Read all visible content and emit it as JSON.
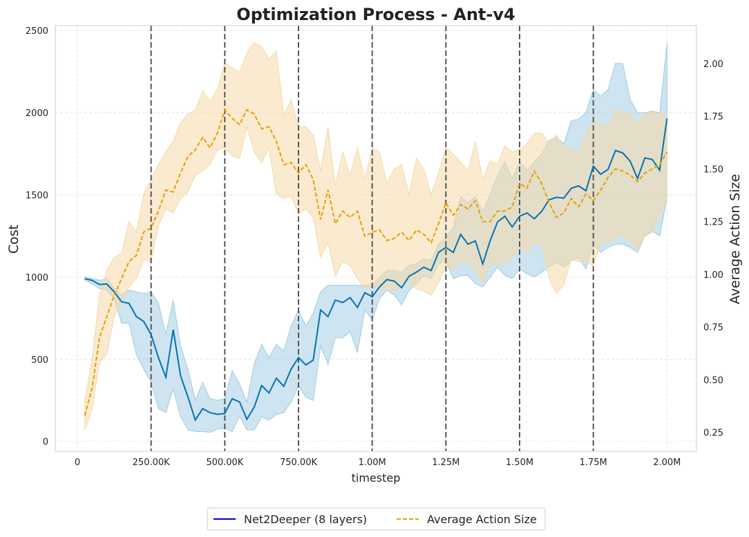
{
  "chart_data": {
    "type": "line",
    "title": "Optimization Process - Ant-v4",
    "xlabel": "timestep",
    "ylabel_left": "Cost",
    "ylabel_right": "Average Action Size",
    "xlim": [
      -75000,
      2100000
    ],
    "ylim_left": [
      -60,
      2530
    ],
    "ylim_right": [
      0.16,
      2.18
    ],
    "x_ticks": [
      0,
      250000,
      500000,
      750000,
      1000000,
      1250000,
      1500000,
      1750000,
      2000000
    ],
    "x_tick_labels": [
      "0",
      "250.00K",
      "500.00K",
      "750.00K",
      "1.00M",
      "1.25M",
      "1.50M",
      "1.75M",
      "2.00M"
    ],
    "y_left_ticks": [
      0,
      500,
      1000,
      1500,
      2000,
      2500
    ],
    "y_right_ticks": [
      0.25,
      0.5,
      0.75,
      1.0,
      1.25,
      1.5,
      1.75,
      2.0
    ],
    "y_right_tick_labels": [
      "0.25",
      "0.50",
      "0.75",
      "1.00",
      "1.25",
      "1.50",
      "1.75",
      "2.00"
    ],
    "vlines": [
      250000,
      500000,
      750000,
      1000000,
      1250000,
      1500000,
      1750000
    ],
    "grid": true,
    "legend_placement": "bottom-center",
    "colors": {
      "cost": "#0072b2",
      "cost_band": "#9ecae1",
      "action": "#e69f00",
      "action_band": "#f5d9a8",
      "legend_cost_line": "#0000cc",
      "vline": "#555555",
      "grid": "#dddddd"
    },
    "series": [
      {
        "name": "Net2Deeper (8 layers)",
        "axis": "left",
        "style": "solid",
        "x": [
          25000,
          50000,
          75000,
          100000,
          125000,
          150000,
          175000,
          200000,
          225000,
          250000,
          275000,
          300000,
          325000,
          350000,
          375000,
          400000,
          425000,
          450000,
          475000,
          500000,
          525000,
          550000,
          575000,
          600000,
          625000,
          650000,
          675000,
          700000,
          725000,
          750000,
          775000,
          800000,
          825000,
          850000,
          875000,
          900000,
          925000,
          950000,
          975000,
          1000000,
          1025000,
          1050000,
          1075000,
          1100000,
          1125000,
          1150000,
          1175000,
          1200000,
          1225000,
          1250000,
          1275000,
          1300000,
          1325000,
          1350000,
          1375000,
          1400000,
          1425000,
          1450000,
          1475000,
          1500000,
          1525000,
          1550000,
          1575000,
          1600000,
          1625000,
          1650000,
          1675000,
          1700000,
          1725000,
          1750000,
          1775000,
          1800000,
          1825000,
          1850000,
          1875000,
          1900000,
          1925000,
          1950000,
          1975000,
          2000000
        ],
        "values": [
          990,
          980,
          955,
          958,
          910,
          850,
          840,
          760,
          730,
          650,
          510,
          390,
          680,
          400,
          270,
          130,
          200,
          175,
          165,
          170,
          260,
          240,
          135,
          210,
          340,
          295,
          385,
          335,
          440,
          510,
          465,
          495,
          800,
          760,
          860,
          845,
          875,
          815,
          905,
          880,
          940,
          985,
          975,
          935,
          1005,
          1030,
          1060,
          1040,
          1150,
          1180,
          1150,
          1260,
          1200,
          1220,
          1080,
          1220,
          1335,
          1370,
          1305,
          1370,
          1390,
          1355,
          1400,
          1470,
          1485,
          1480,
          1540,
          1555,
          1525,
          1675,
          1625,
          1655,
          1770,
          1755,
          1705,
          1600,
          1725,
          1715,
          1650,
          1965
        ],
        "upper": [
          1000,
          990,
          980,
          990,
          930,
          890,
          920,
          910,
          900,
          910,
          840,
          650,
          860,
          580,
          440,
          250,
          360,
          260,
          250,
          260,
          430,
          350,
          240,
          470,
          590,
          510,
          590,
          550,
          700,
          800,
          700,
          780,
          910,
          950,
          950,
          950,
          950,
          950,
          950,
          950,
          1000,
          1040,
          1040,
          1030,
          1070,
          1080,
          1110,
          1100,
          1200,
          1240,
          1300,
          1490,
          1450,
          1490,
          1400,
          1500,
          1620,
          1700,
          1600,
          1700,
          1650,
          1700,
          1750,
          1830,
          1850,
          1810,
          1950,
          1960,
          2000,
          2140,
          2100,
          2140,
          2300,
          2300,
          2080,
          2000,
          2000,
          2010,
          2000,
          2420
        ],
        "lower": [
          980,
          960,
          930,
          920,
          870,
          720,
          720,
          530,
          440,
          360,
          200,
          175,
          320,
          150,
          70,
          60,
          60,
          55,
          75,
          80,
          60,
          155,
          70,
          70,
          150,
          130,
          165,
          175,
          240,
          340,
          270,
          250,
          580,
          470,
          630,
          630,
          670,
          540,
          800,
          740,
          870,
          920,
          890,
          830,
          920,
          960,
          1010,
          990,
          1080,
          1100,
          990,
          1010,
          1010,
          960,
          940,
          1000,
          1060,
          1010,
          990,
          1050,
          1020,
          1000,
          1030,
          1060,
          1090,
          1060,
          1100,
          1120,
          1050,
          1200,
          1150,
          1180,
          1200,
          1200,
          1180,
          1150,
          1250,
          1280,
          1250,
          1480
        ]
      },
      {
        "name": "Average Action Size",
        "axis": "right",
        "style": "dashed",
        "x": [
          25000,
          50000,
          75000,
          100000,
          125000,
          150000,
          175000,
          200000,
          225000,
          250000,
          275000,
          300000,
          325000,
          350000,
          375000,
          400000,
          425000,
          450000,
          475000,
          500000,
          525000,
          550000,
          575000,
          600000,
          625000,
          650000,
          675000,
          700000,
          725000,
          750000,
          775000,
          800000,
          825000,
          850000,
          875000,
          900000,
          925000,
          950000,
          975000,
          1000000,
          1025000,
          1050000,
          1075000,
          1100000,
          1125000,
          1150000,
          1175000,
          1200000,
          1225000,
          1250000,
          1275000,
          1300000,
          1325000,
          1350000,
          1375000,
          1400000,
          1425000,
          1450000,
          1475000,
          1500000,
          1525000,
          1550000,
          1575000,
          1600000,
          1625000,
          1650000,
          1675000,
          1700000,
          1725000,
          1750000,
          1775000,
          1800000,
          1825000,
          1850000,
          1875000,
          1900000,
          1925000,
          1950000,
          1975000,
          2000000
        ],
        "values": [
          0.33,
          0.46,
          0.7,
          0.8,
          0.9,
          0.98,
          1.06,
          1.09,
          1.2,
          1.22,
          1.3,
          1.4,
          1.39,
          1.48,
          1.56,
          1.59,
          1.65,
          1.6,
          1.67,
          1.78,
          1.74,
          1.71,
          1.78,
          1.76,
          1.69,
          1.7,
          1.63,
          1.52,
          1.53,
          1.48,
          1.52,
          1.45,
          1.26,
          1.4,
          1.24,
          1.3,
          1.27,
          1.3,
          1.18,
          1.2,
          1.21,
          1.16,
          1.17,
          1.2,
          1.16,
          1.21,
          1.19,
          1.15,
          1.24,
          1.34,
          1.28,
          1.33,
          1.31,
          1.35,
          1.25,
          1.25,
          1.3,
          1.3,
          1.32,
          1.43,
          1.41,
          1.49,
          1.43,
          1.34,
          1.27,
          1.29,
          1.36,
          1.32,
          1.38,
          1.35,
          1.4,
          1.46,
          1.5,
          1.49,
          1.47,
          1.44,
          1.48,
          1.5,
          1.52,
          1.58
        ],
        "upper": [
          0.4,
          0.6,
          0.9,
          1.02,
          1.08,
          1.1,
          1.25,
          1.2,
          1.38,
          1.45,
          1.52,
          1.58,
          1.63,
          1.72,
          1.76,
          1.78,
          1.87,
          1.82,
          1.88,
          2.0,
          1.98,
          1.96,
          2.05,
          2.1,
          2.08,
          2.02,
          2.06,
          1.75,
          1.83,
          1.7,
          1.7,
          1.66,
          1.49,
          1.7,
          1.42,
          1.58,
          1.47,
          1.6,
          1.45,
          1.6,
          1.58,
          1.43,
          1.5,
          1.52,
          1.38,
          1.55,
          1.5,
          1.38,
          1.48,
          1.6,
          1.57,
          1.53,
          1.49,
          1.63,
          1.45,
          1.54,
          1.52,
          1.61,
          1.58,
          1.59,
          1.62,
          1.67,
          1.67,
          1.62,
          1.66,
          1.6,
          1.6,
          1.58,
          1.66,
          1.73,
          1.71,
          1.7,
          1.78,
          1.77,
          1.76,
          1.71,
          1.76,
          1.77,
          1.76,
          1.76
        ],
        "lower": [
          0.26,
          0.36,
          0.58,
          0.62,
          0.8,
          0.87,
          0.94,
          0.98,
          1.07,
          1.06,
          1.23,
          1.31,
          1.29,
          1.36,
          1.39,
          1.47,
          1.49,
          1.52,
          1.59,
          1.6,
          1.56,
          1.55,
          1.7,
          1.58,
          1.53,
          1.6,
          1.38,
          1.36,
          1.37,
          1.29,
          1.31,
          1.27,
          1.08,
          1.15,
          0.99,
          1.06,
          1.04,
          0.98,
          0.93,
          0.95,
          0.93,
          0.93,
          0.92,
          0.95,
          0.96,
          0.93,
          0.92,
          0.9,
          0.96,
          1.04,
          1.02,
          1.06,
          1.06,
          1.02,
          0.96,
          1.05,
          1.05,
          1.05,
          1.08,
          1.13,
          1.1,
          1.15,
          1.15,
          0.98,
          0.91,
          0.95,
          1.07,
          1.06,
          1.06,
          1.04,
          1.15,
          1.15,
          1.18,
          1.18,
          1.16,
          1.12,
          1.18,
          1.2,
          1.28,
          1.36
        ]
      }
    ]
  }
}
